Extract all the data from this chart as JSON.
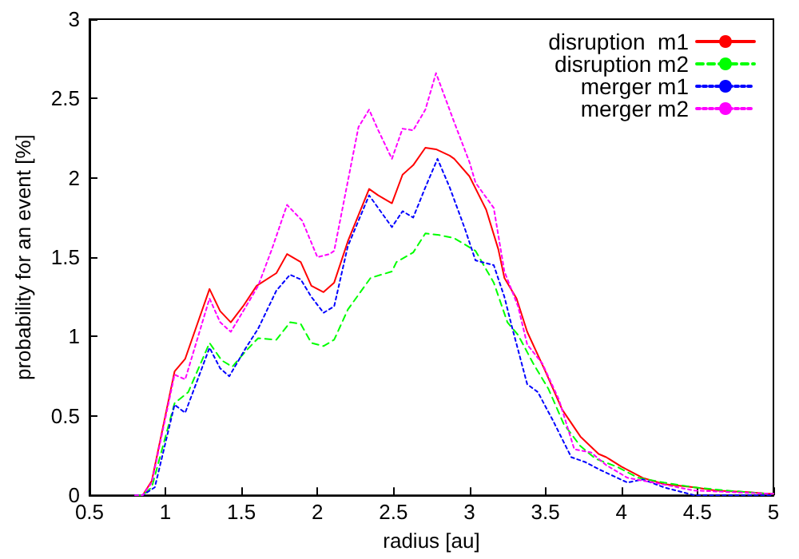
{
  "chart_data": {
    "type": "line",
    "xlabel": "radius [au]",
    "ylabel": "probability for an event [%]",
    "xlim": [
      0.5,
      5
    ],
    "ylim": [
      0,
      3
    ],
    "xticks": [
      0.5,
      1,
      1.5,
      2,
      2.5,
      3,
      3.5,
      4,
      4.5,
      5
    ],
    "yticks": [
      0,
      0.5,
      1,
      1.5,
      2,
      2.5,
      3
    ],
    "grid": false,
    "legend": "top right",
    "marker": "none",
    "series": [
      {
        "name": "disruption  m1",
        "color": "#ff0000",
        "line_style": "solid",
        "x": [
          0.8,
          0.85,
          0.91,
          1.06,
          1.13,
          1.29,
          1.36,
          1.43,
          1.51,
          1.6,
          1.73,
          1.8,
          1.89,
          1.96,
          2.04,
          2.11,
          2.2,
          2.34,
          2.4,
          2.49,
          2.56,
          2.63,
          2.71,
          2.78,
          2.87,
          2.9,
          3.0,
          3.11,
          3.19,
          3.23,
          3.31,
          3.38,
          3.5,
          3.61,
          3.73,
          3.85,
          3.9,
          4.0,
          4.14,
          4.28,
          4.48,
          4.62,
          4.83,
          4.96,
          5.0
        ],
        "values": [
          0,
          0,
          0.09,
          0.78,
          0.86,
          1.3,
          1.16,
          1.09,
          1.19,
          1.32,
          1.4,
          1.52,
          1.47,
          1.32,
          1.28,
          1.34,
          1.6,
          1.93,
          1.89,
          1.84,
          2.02,
          2.08,
          2.19,
          2.18,
          2.14,
          2.12,
          2.01,
          1.8,
          1.55,
          1.37,
          1.24,
          1.03,
          0.78,
          0.54,
          0.37,
          0.26,
          0.24,
          0.18,
          0.11,
          0.07,
          0.05,
          0.03,
          0.02,
          0.01,
          0.01
        ]
      },
      {
        "name": "disruption m2",
        "color": "#00ff00",
        "line_style": "dashed",
        "x": [
          0.8,
          0.85,
          0.91,
          1.06,
          1.15,
          1.29,
          1.37,
          1.44,
          1.53,
          1.61,
          1.73,
          1.82,
          1.89,
          1.96,
          2.04,
          2.11,
          2.2,
          2.35,
          2.49,
          2.52,
          2.63,
          2.71,
          2.8,
          2.9,
          3.04,
          3.16,
          3.25,
          3.32,
          3.42,
          3.52,
          3.62,
          3.73,
          3.83,
          3.97,
          4.11,
          4.28,
          4.48,
          4.69,
          4.96,
          5.0
        ],
        "values": [
          0,
          0,
          0.05,
          0.58,
          0.65,
          0.96,
          0.85,
          0.81,
          0.91,
          0.99,
          0.98,
          1.09,
          1.08,
          0.96,
          0.94,
          0.98,
          1.17,
          1.37,
          1.41,
          1.47,
          1.53,
          1.65,
          1.64,
          1.62,
          1.54,
          1.34,
          1.09,
          1.01,
          0.83,
          0.67,
          0.45,
          0.31,
          0.23,
          0.18,
          0.11,
          0.08,
          0.05,
          0.03,
          0.01,
          0.01
        ]
      },
      {
        "name": "merger m1",
        "color": "#0000ff",
        "line_style": "dotted",
        "x": [
          0.8,
          0.85,
          0.93,
          1.06,
          1.13,
          1.29,
          1.36,
          1.42,
          1.53,
          1.61,
          1.73,
          1.82,
          1.89,
          1.96,
          2.04,
          2.11,
          2.2,
          2.34,
          2.49,
          2.56,
          2.63,
          2.71,
          2.79,
          2.87,
          2.97,
          3.04,
          3.16,
          3.23,
          3.28,
          3.38,
          3.45,
          3.55,
          3.67,
          3.76,
          3.86,
          4.04,
          4.14,
          4.28,
          4.48,
          4.96,
          5.0
        ],
        "values": [
          0,
          0,
          0.05,
          0.57,
          0.52,
          0.93,
          0.8,
          0.75,
          0.93,
          1.05,
          1.29,
          1.39,
          1.36,
          1.25,
          1.15,
          1.19,
          1.57,
          1.89,
          1.69,
          1.79,
          1.75,
          1.94,
          2.12,
          1.94,
          1.68,
          1.48,
          1.45,
          1.25,
          1.06,
          0.7,
          0.65,
          0.47,
          0.24,
          0.21,
          0.16,
          0.08,
          0.1,
          0.05,
          0,
          0,
          0
        ]
      },
      {
        "name": "merger m2",
        "color": "#ff00ff",
        "line_style": "dotted",
        "x": [
          0.8,
          0.85,
          0.91,
          1.06,
          1.13,
          1.29,
          1.36,
          1.43,
          1.53,
          1.61,
          1.7,
          1.8,
          1.9,
          2.0,
          2.08,
          2.11,
          2.27,
          2.34,
          2.4,
          2.49,
          2.56,
          2.63,
          2.71,
          2.78,
          2.9,
          3.0,
          3.04,
          3.16,
          3.23,
          3.32,
          3.38,
          3.48,
          3.59,
          3.69,
          3.8,
          3.9,
          4.04,
          4.21,
          4.48,
          4.96,
          5.0
        ],
        "values": [
          0,
          0,
          0.08,
          0.76,
          0.73,
          1.24,
          1.09,
          1.03,
          1.19,
          1.32,
          1.55,
          1.83,
          1.73,
          1.5,
          1.52,
          1.54,
          2.32,
          2.43,
          2.3,
          2.12,
          2.31,
          2.3,
          2.43,
          2.66,
          2.35,
          2.1,
          1.97,
          1.81,
          1.41,
          1.19,
          0.95,
          0.83,
          0.6,
          0.29,
          0.27,
          0.19,
          0.11,
          0.08,
          0.03,
          0.01,
          0.01
        ]
      }
    ]
  }
}
